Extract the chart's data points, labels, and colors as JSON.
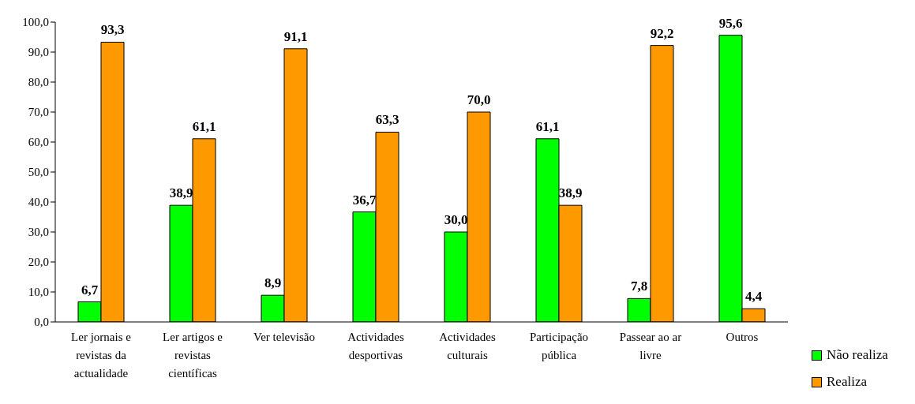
{
  "chart_data": {
    "type": "bar",
    "categories": [
      "Ler jornais e revistas da actualidade",
      "Ler artigos e revistas científicas",
      "Ver televisão",
      "Actividades desportivas",
      "Actividades culturais",
      "Participação pública",
      "Passear ao ar livre",
      "Outros"
    ],
    "series": [
      {
        "name": "Não realiza",
        "color": "#00ff00",
        "values": [
          6.7,
          38.9,
          8.9,
          36.7,
          30.0,
          61.1,
          7.8,
          95.6
        ],
        "value_labels": [
          "6,7",
          "38,9",
          "8,9",
          "36,7",
          "30,0",
          "61,1",
          "7,8",
          "95,6"
        ]
      },
      {
        "name": "Realiza",
        "color": "#ff9900",
        "values": [
          93.3,
          61.1,
          91.1,
          63.3,
          70.0,
          38.9,
          92.2,
          4.4
        ],
        "value_labels": [
          "93,3",
          "61,1",
          "91,1",
          "63,3",
          "70,0",
          "38,9",
          "92,2",
          "4,4"
        ]
      }
    ],
    "ylim": [
      0,
      100
    ],
    "yticks": [
      {
        "value": 0,
        "label": "0,0"
      },
      {
        "value": 10,
        "label": "10,0"
      },
      {
        "value": 20,
        "label": "20,0"
      },
      {
        "value": 30,
        "label": "30,0"
      },
      {
        "value": 40,
        "label": "40,0"
      },
      {
        "value": 50,
        "label": "50,0"
      },
      {
        "value": 60,
        "label": "60,0"
      },
      {
        "value": 70,
        "label": "70,0"
      },
      {
        "value": 80,
        "label": "80,0"
      },
      {
        "value": 90,
        "label": "90,0"
      },
      {
        "value": 100,
        "label": "100,0"
      }
    ],
    "legend": "bottom right"
  }
}
